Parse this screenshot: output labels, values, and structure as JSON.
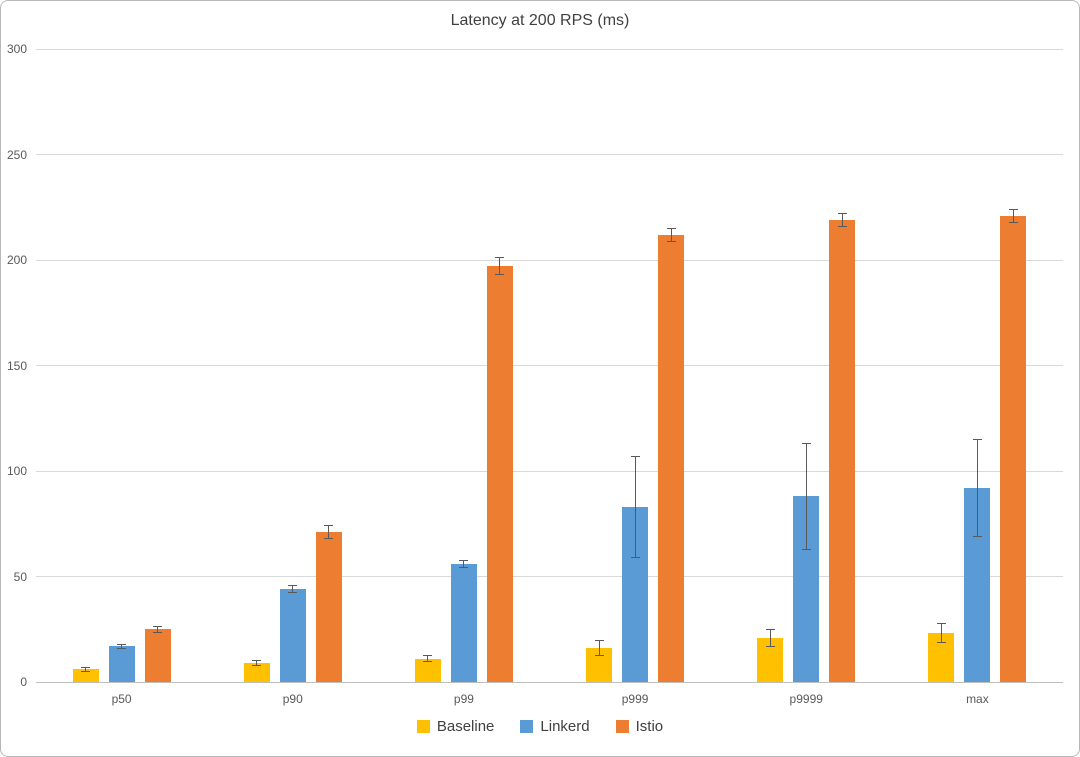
{
  "chart_data": {
    "type": "bar",
    "title": "Latency at 200 RPS (ms)",
    "categories": [
      "p50",
      "p90",
      "p99",
      "p999",
      "p9999",
      "max"
    ],
    "series": [
      {
        "name": "Baseline",
        "color": "#FFC000",
        "values": [
          6,
          9,
          11,
          16,
          21,
          23
        ],
        "errors": [
          1,
          1,
          1.5,
          3.5,
          4,
          4.5
        ]
      },
      {
        "name": "Linkerd",
        "color": "#5B9BD5",
        "values": [
          17,
          44,
          56,
          83,
          88,
          92
        ],
        "errors": [
          1,
          1.5,
          1.5,
          24,
          25,
          23
        ]
      },
      {
        "name": "Istio",
        "color": "#ED7D31",
        "values": [
          25,
          71,
          197,
          212,
          219,
          221
        ],
        "errors": [
          1.5,
          3,
          4,
          3,
          3,
          3
        ]
      }
    ],
    "ylim": [
      0,
      300
    ],
    "yticks": [
      0,
      50,
      100,
      150,
      200,
      250,
      300
    ],
    "xlabel": "",
    "ylabel": "",
    "grid": true,
    "legend_position": "bottom"
  },
  "colors": {
    "grid": "#d9d9d9",
    "axis": "#bfbfbf",
    "tick_text": "#595959",
    "title_text": "#404040",
    "error_bar": "#595959",
    "background": "#ffffff",
    "border": "#b8b8b8"
  }
}
